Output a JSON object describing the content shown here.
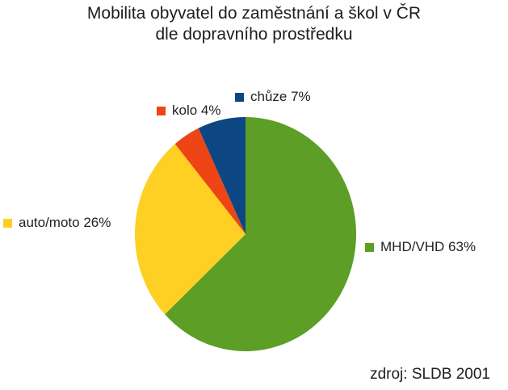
{
  "chart_data": {
    "type": "pie",
    "title": "Mobilita obyvatel do zaměstnání a škol v ČR",
    "subtitle": "dle dopravního prostředku",
    "slices": [
      {
        "label": "MHD/VHD 63%",
        "value": 63,
        "color": "#5c9e26"
      },
      {
        "label": "auto/moto 26%",
        "value": 26,
        "color": "#fdd023"
      },
      {
        "label": "kolo 4%",
        "value": 4,
        "color": "#ee4516"
      },
      {
        "label": "chůze 7%",
        "value": 7,
        "color": "#0c4784"
      }
    ],
    "source": "zdroj: SLDB 2001"
  }
}
